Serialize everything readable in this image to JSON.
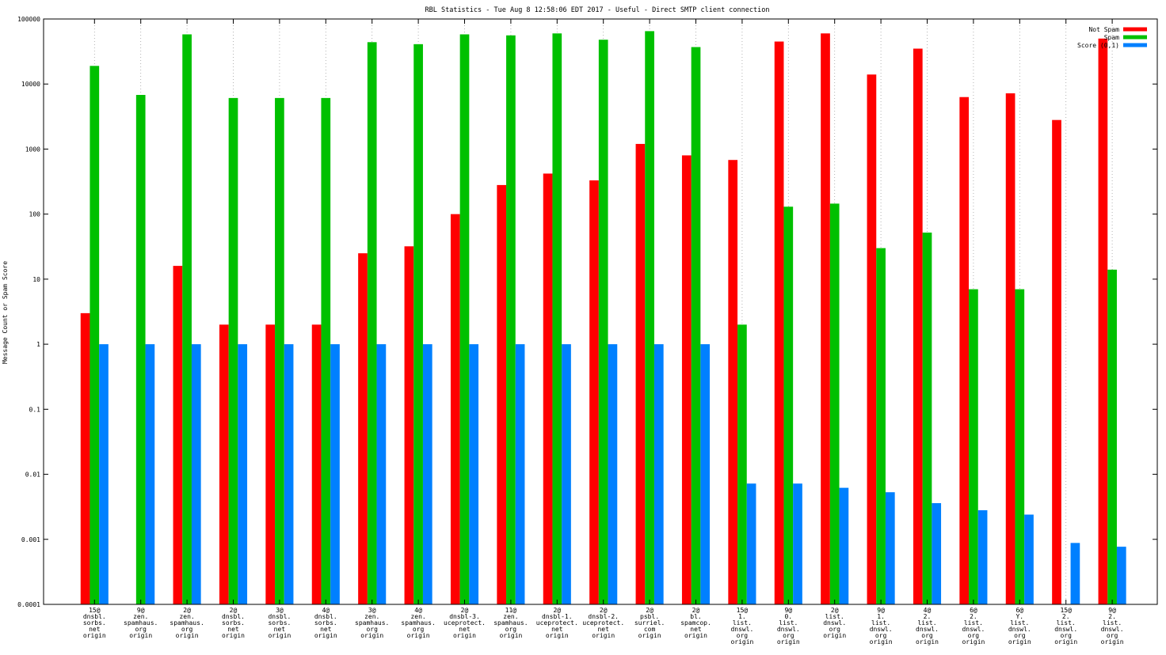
{
  "chart_data": {
    "type": "bar",
    "title": "RBL Statistics - Tue Aug  8 12:58:06 EDT 2017 - Useful - Direct SMTP client connection",
    "xlabel": "",
    "ylabel": "Message Count or Spam Score",
    "yscale": "log",
    "ylim": [
      0.0001,
      100000
    ],
    "ytick_labels": [
      "0.0001",
      "0.001",
      "0.01",
      "0.1",
      "1",
      "10",
      "100",
      "1000",
      "10000",
      "100000"
    ],
    "grid": "x-dotted",
    "legend_position": "top-right",
    "categories": [
      [
        "15@",
        "dnsbl.",
        "sorbs.",
        "net",
        "origin"
      ],
      [
        "9@",
        "zen.",
        "spamhaus.",
        "org",
        "origin"
      ],
      [
        "2@",
        "zen.",
        "spamhaus.",
        "org",
        "origin"
      ],
      [
        "2@",
        "dnsbl.",
        "sorbs.",
        "net",
        "origin"
      ],
      [
        "3@",
        "dnsbl.",
        "sorbs.",
        "net",
        "origin"
      ],
      [
        "4@",
        "dnsbl.",
        "sorbs.",
        "net",
        "origin"
      ],
      [
        "3@",
        "zen.",
        "spamhaus.",
        "org",
        "origin"
      ],
      [
        "4@",
        "zen.",
        "spamhaus.",
        "org",
        "origin"
      ],
      [
        "2@",
        "dnsbl-3.",
        "uceprotect.",
        "net",
        "origin"
      ],
      [
        "11@",
        "zen.",
        "spamhaus.",
        "org",
        "origin"
      ],
      [
        "2@",
        "dnsbl-1.",
        "uceprotect.",
        "net",
        "origin"
      ],
      [
        "2@",
        "dnsbl-2.",
        "uceprotect.",
        "net",
        "origin"
      ],
      [
        "2@",
        "psbl.",
        "surriel.",
        "com",
        "origin"
      ],
      [
        "2@",
        "bl.",
        "spamcop.",
        "net",
        "origin"
      ],
      [
        "15@",
        "1.",
        "list.",
        "dnswl.",
        "org",
        "origin"
      ],
      [
        "9@",
        "0.",
        "list.",
        "dnswl.",
        "org",
        "origin"
      ],
      [
        "2@",
        "list.",
        "dnswl.",
        "org",
        "origin"
      ],
      [
        "9@",
        "1.",
        "list.",
        "dnswl.",
        "org",
        "origin"
      ],
      [
        "4@",
        "2.",
        "list.",
        "dnswl.",
        "org",
        "origin"
      ],
      [
        "6@",
        "2.",
        "list.",
        "dnswl.",
        "org",
        "origin"
      ],
      [
        "6@",
        "Y.",
        "list.",
        "dnswl.",
        "org",
        "origin"
      ],
      [
        "15@",
        "2.",
        "list.",
        "dnswl.",
        "org",
        "origin"
      ],
      [
        "9@",
        "2.",
        "list.",
        "dnswl.",
        "org",
        "origin"
      ]
    ],
    "series": [
      {
        "name": "Not Spam",
        "color": "#ff0000",
        "values": [
          3,
          null,
          16,
          2,
          2,
          2,
          25,
          32,
          100,
          280,
          420,
          330,
          1200,
          800,
          680,
          45000,
          60000,
          14000,
          35000,
          6300,
          7200,
          2800,
          50000
        ]
      },
      {
        "name": "Spam",
        "color": "#00c000",
        "values": [
          19000,
          6800,
          58000,
          6100,
          6100,
          6100,
          44000,
          41000,
          58000,
          56000,
          60000,
          48000,
          65000,
          37000,
          2,
          130,
          145,
          30,
          52,
          7,
          7,
          null,
          14
        ]
      },
      {
        "name": "Score (0,1)",
        "color": "#0080ff",
        "values": [
          1,
          1,
          1,
          1,
          1,
          1,
          1,
          1,
          1,
          1,
          1,
          1,
          1,
          1,
          0.0072,
          0.0072,
          0.0062,
          0.0053,
          0.0036,
          0.0028,
          0.0024,
          0.00088,
          0.00077
        ]
      }
    ]
  }
}
